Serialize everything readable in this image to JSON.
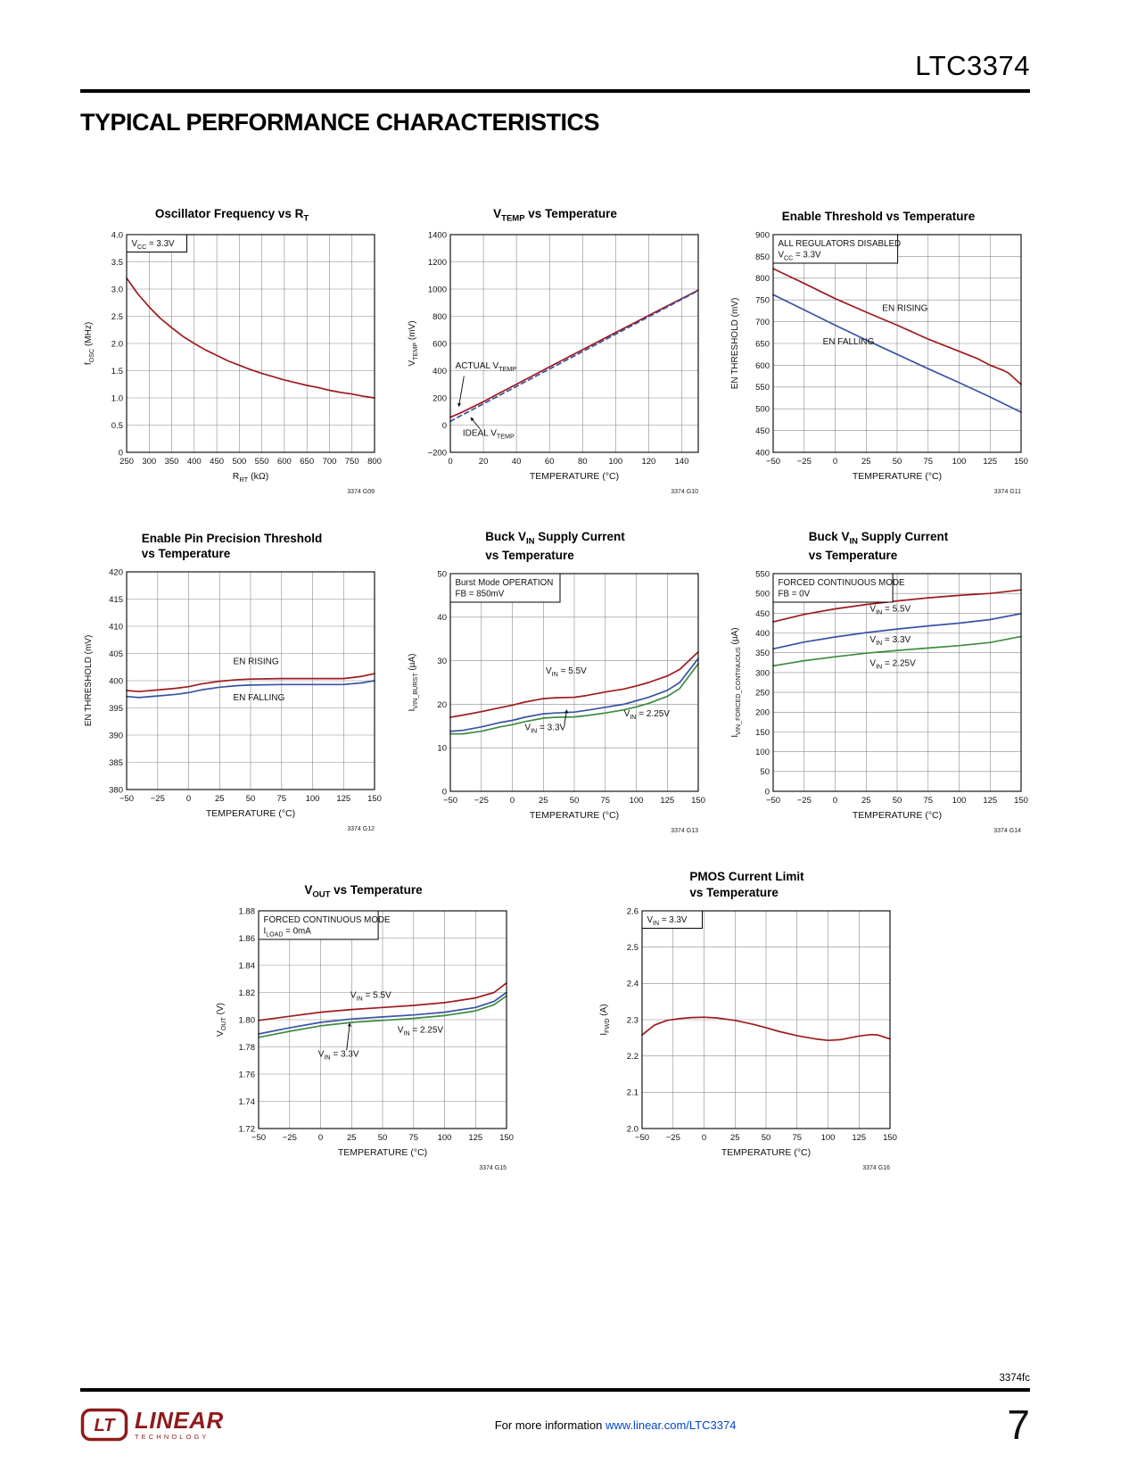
{
  "page": {
    "part_number": "LTC3374",
    "section_title": "TYPICAL PERFORMANCE CHARACTERISTICS",
    "footer": {
      "doc_code": "3374fc",
      "info_text": "For more information ",
      "info_link": "www.linear.com/LTC3374",
      "logo_mark": "LT",
      "logo_text": "LINEAR",
      "logo_sub": "TECHNOLOGY",
      "page_number": "7"
    }
  },
  "colors": {
    "red": "#9e1b1e",
    "blue": "#3953a4",
    "green": "#3d8c40",
    "link": "#0048cc",
    "logo": "#8e1b1d",
    "grid": "#8a8a8a",
    "ink": "#111111"
  },
  "chart_data": [
    {
      "id": "G09",
      "type": "line",
      "title": [
        "Oscillator Frequency vs R~T~"
      ],
      "xlabel": "R~RT~ (kΩ)",
      "ylabel": "f~OSC~ (MHz)",
      "ref": "3374 G09",
      "xlim": [
        250,
        800
      ],
      "xticks": [
        250,
        300,
        350,
        400,
        450,
        500,
        550,
        600,
        650,
        700,
        750,
        800
      ],
      "ylim": [
        0,
        4
      ],
      "yticks": [
        0,
        0.5,
        1,
        1.5,
        2,
        2.5,
        3,
        3.5,
        4
      ],
      "ytick_labels": [
        "0",
        "0.5",
        "1.0",
        "1.5",
        "2.0",
        "2.5",
        "3.0",
        "3.5",
        "4.0"
      ],
      "corner_box": [
        "V~CC~ = 3.3V"
      ],
      "annotations": [],
      "series": [
        {
          "name": "fOSC vs RT",
          "color": "red",
          "x": [
            250,
            275,
            300,
            325,
            350,
            375,
            400,
            425,
            450,
            475,
            500,
            525,
            550,
            575,
            600,
            625,
            650,
            675,
            700,
            725,
            750,
            775,
            800
          ],
          "y": [
            3.2,
            2.91,
            2.67,
            2.46,
            2.29,
            2.13,
            2.0,
            1.88,
            1.78,
            1.68,
            1.6,
            1.52,
            1.45,
            1.39,
            1.33,
            1.28,
            1.23,
            1.19,
            1.14,
            1.1,
            1.07,
            1.03,
            1.0
          ]
        }
      ]
    },
    {
      "id": "G10",
      "type": "line",
      "title": [
        "V~TEMP~ vs Temperature"
      ],
      "xlabel": "TEMPERATURE (°C)",
      "ylabel": "V~TEMP~ (mV)",
      "ref": "3374 G10",
      "xlim": [
        0,
        150
      ],
      "xticks": [
        0,
        20,
        40,
        60,
        80,
        100,
        120,
        140
      ],
      "ylim": [
        -200,
        1400
      ],
      "yticks": [
        -200,
        0,
        200,
        400,
        600,
        800,
        1000,
        1200,
        1400
      ],
      "ytick_labels": [
        "−200",
        "0",
        "200",
        "400",
        "600",
        "800",
        "1000",
        "1200",
        "1400"
      ],
      "annotations": [
        {
          "text": "ACTUAL V~TEMP~",
          "fx": 0.02,
          "fy": 0.615,
          "arrow": [
            0.055,
            0.65,
            0.034,
            0.79
          ]
        },
        {
          "text": "IDEAL V~TEMP~",
          "fx": 0.05,
          "fy": 0.925,
          "arrow": [
            0.12,
            0.893,
            0.082,
            0.84
          ]
        }
      ],
      "series": [
        {
          "name": "ACTUAL VTEMP",
          "color": "red",
          "x": [
            0,
            5,
            10,
            20,
            30,
            40,
            50,
            60,
            70,
            80,
            90,
            100,
            110,
            120,
            130,
            140,
            150
          ],
          "y": [
            58,
            83,
            112,
            172,
            237,
            300,
            364,
            428,
            491,
            554,
            617,
            680,
            743,
            806,
            868,
            930,
            992
          ]
        },
        {
          "name": "IDEAL VTEMP",
          "color": "blue",
          "dash": "5,4",
          "x": [
            0,
            150
          ],
          "y": [
            28,
            988
          ]
        }
      ]
    },
    {
      "id": "G11",
      "type": "line",
      "title": [
        "Enable Threshold vs Temperature"
      ],
      "xlabel": "TEMPERATURE (°C)",
      "ylabel": "EN THRESHOLD (mV)",
      "ref": "3374 G11",
      "xlim": [
        -50,
        150
      ],
      "xticks": [
        -50,
        -25,
        0,
        25,
        50,
        75,
        100,
        125,
        150
      ],
      "xtick_labels": [
        "−50",
        "−25",
        "0",
        "25",
        "50",
        "75",
        "100",
        "125",
        "150"
      ],
      "ylim": [
        400,
        900
      ],
      "yticks": [
        400,
        450,
        500,
        550,
        600,
        650,
        700,
        750,
        800,
        850,
        900
      ],
      "corner_box": [
        "ALL REGULATORS DISABLED",
        "V~CC~ = 3.3V"
      ],
      "annotations": [
        {
          "text": "EN RISING",
          "fx": 0.44,
          "fy": 0.35
        },
        {
          "text": "EN FALLING",
          "fx": 0.2,
          "fy": 0.505
        }
      ],
      "series": [
        {
          "name": "EN RISING",
          "color": "red",
          "x": [
            -50,
            -25,
            0,
            25,
            50,
            75,
            100,
            115,
            125,
            135,
            140,
            150
          ],
          "y": [
            822,
            788,
            753,
            722,
            692,
            660,
            632,
            615,
            600,
            589,
            582,
            556
          ]
        },
        {
          "name": "EN FALLING",
          "color": "blue",
          "x": [
            -50,
            -25,
            0,
            25,
            50,
            75,
            100,
            125,
            150
          ],
          "y": [
            762,
            727,
            692,
            658,
            625,
            592,
            560,
            527,
            492
          ]
        }
      ]
    },
    {
      "id": "G12",
      "type": "line",
      "title": [
        "Enable Pin Precision Threshold",
        "vs Temperature"
      ],
      "xlabel": "TEMPERATURE (°C)",
      "ylabel": "EN THRESHOLD (mV)",
      "ref": "3374 G12",
      "xlim": [
        -50,
        150
      ],
      "xticks": [
        -50,
        -25,
        0,
        25,
        50,
        75,
        100,
        125,
        150
      ],
      "xtick_labels": [
        "−50",
        "−25",
        "0",
        "25",
        "50",
        "75",
        "100",
        "125",
        "150"
      ],
      "ylim": [
        380,
        420
      ],
      "yticks": [
        380,
        385,
        390,
        395,
        400,
        405,
        410,
        415,
        420
      ],
      "annotations": [
        {
          "text": "EN RISING",
          "fx": 0.43,
          "fy": 0.425
        },
        {
          "text": "EN FALLING",
          "fx": 0.43,
          "fy": 0.59
        }
      ],
      "series": [
        {
          "name": "EN RISING",
          "color": "red",
          "x": [
            -50,
            -40,
            -25,
            -10,
            0,
            10,
            25,
            40,
            50,
            75,
            100,
            125,
            140,
            150
          ],
          "y": [
            398.2,
            398.0,
            398.3,
            398.6,
            398.9,
            399.4,
            399.9,
            400.2,
            400.3,
            400.4,
            400.4,
            400.4,
            400.8,
            401.3
          ]
        },
        {
          "name": "EN FALLING",
          "color": "blue",
          "x": [
            -50,
            -40,
            -25,
            -10,
            0,
            10,
            25,
            40,
            50,
            75,
            100,
            125,
            140,
            150
          ],
          "y": [
            397.1,
            396.9,
            397.2,
            397.5,
            397.8,
            398.3,
            398.8,
            399.1,
            399.2,
            399.3,
            399.3,
            399.3,
            399.6,
            400.0
          ]
        }
      ]
    },
    {
      "id": "G13",
      "type": "line",
      "title": [
        "Buck V~IN~ Supply Current",
        "vs Temperature"
      ],
      "xlabel": "TEMPERATURE (°C)",
      "ylabel": "I~VIN_BURST~ (µA)",
      "ref": "3374 G13",
      "xlim": [
        -50,
        150
      ],
      "xticks": [
        -50,
        -25,
        0,
        25,
        50,
        75,
        100,
        125,
        150
      ],
      "xtick_labels": [
        "−50",
        "−25",
        "0",
        "25",
        "50",
        "75",
        "100",
        "125",
        "150"
      ],
      "ylim": [
        0,
        50
      ],
      "yticks": [
        0,
        10,
        20,
        30,
        40,
        50
      ],
      "corner_box": [
        "Burst Mode OPERATION",
        "FB = 850mV"
      ],
      "annotations": [
        {
          "text": "V~IN~ = 5.5V",
          "fx": 0.385,
          "fy": 0.46
        },
        {
          "text": "V~IN~ = 3.3V",
          "fx": 0.3,
          "fy": 0.72,
          "arrow": [
            0.46,
            0.69,
            0.47,
            0.625
          ]
        },
        {
          "text": "V~IN~ = 2.25V",
          "fx": 0.7,
          "fy": 0.655
        }
      ],
      "series": [
        {
          "name": "VIN = 5.5V",
          "color": "red",
          "x": [
            -50,
            -40,
            -25,
            -10,
            0,
            10,
            25,
            35,
            50,
            60,
            75,
            90,
            100,
            110,
            125,
            135,
            150
          ],
          "y": [
            17,
            17.5,
            18.3,
            19.2,
            19.8,
            20.5,
            21.3,
            21.5,
            21.6,
            22,
            22.8,
            23.5,
            24.2,
            25,
            26.5,
            28,
            32
          ]
        },
        {
          "name": "VIN = 3.3V",
          "color": "blue",
          "x": [
            -50,
            -40,
            -25,
            -10,
            0,
            10,
            25,
            35,
            50,
            60,
            75,
            90,
            100,
            110,
            125,
            135,
            150
          ],
          "y": [
            13.8,
            14,
            14.8,
            15.8,
            16.3,
            17,
            17.8,
            18,
            18.2,
            18.6,
            19.3,
            20,
            20.8,
            21.6,
            23.2,
            25,
            30.5
          ]
        },
        {
          "name": "VIN = 2.25V",
          "color": "green",
          "x": [
            -50,
            -40,
            -25,
            -10,
            0,
            10,
            25,
            35,
            50,
            60,
            75,
            90,
            100,
            110,
            125,
            135,
            150
          ],
          "y": [
            13.2,
            13.2,
            13.8,
            14.8,
            15.3,
            16,
            16.8,
            17,
            17.1,
            17.4,
            18,
            18.7,
            19.4,
            20.2,
            21.8,
            23.6,
            29.3
          ]
        }
      ]
    },
    {
      "id": "G14",
      "type": "line",
      "title": [
        "Buck V~IN~ Supply Current",
        "vs Temperature"
      ],
      "xlabel": "TEMPERATURE (°C)",
      "ylabel": "I~VIN_FORCED_CONTINUOUS~ (µA)",
      "ref": "3374 G14",
      "xlim": [
        -50,
        150
      ],
      "xticks": [
        -50,
        -25,
        0,
        25,
        50,
        75,
        100,
        125,
        150
      ],
      "xtick_labels": [
        "−50",
        "−25",
        "0",
        "25",
        "50",
        "75",
        "100",
        "125",
        "150"
      ],
      "ylim": [
        0,
        550
      ],
      "yticks": [
        0,
        50,
        100,
        150,
        200,
        250,
        300,
        350,
        400,
        450,
        500,
        550
      ],
      "corner_box": [
        "FORCED CONTINUOUS MODE",
        "FB = 0V"
      ],
      "annotations": [
        {
          "text": "V~IN~ = 5.5V",
          "fx": 0.39,
          "fy": 0.175
        },
        {
          "text": "V~IN~ = 3.3V",
          "fx": 0.39,
          "fy": 0.315
        },
        {
          "text": "V~IN~ = 2.25V",
          "fx": 0.39,
          "fy": 0.425
        }
      ],
      "series": [
        {
          "name": "VIN = 5.5V",
          "color": "red",
          "x": [
            -50,
            -25,
            0,
            25,
            50,
            75,
            100,
            125,
            150
          ],
          "y": [
            428,
            447,
            461,
            472,
            481,
            489,
            495,
            500,
            509
          ]
        },
        {
          "name": "VIN = 3.3V",
          "color": "blue",
          "x": [
            -50,
            -25,
            0,
            25,
            50,
            75,
            100,
            125,
            150
          ],
          "y": [
            360,
            377,
            390,
            401,
            410,
            418,
            425,
            434,
            449
          ]
        },
        {
          "name": "VIN = 2.25V",
          "color": "green",
          "x": [
            -50,
            -25,
            0,
            25,
            50,
            75,
            100,
            125,
            150
          ],
          "y": [
            317,
            330,
            340,
            349,
            356,
            362,
            368,
            376,
            391
          ]
        }
      ]
    },
    {
      "id": "G15",
      "type": "line",
      "title": [
        "V~OUT~ vs Temperature"
      ],
      "xlabel": "TEMPERATURE (°C)",
      "ylabel": "V~OUT~ (V)",
      "ref": "3374 G15",
      "xlim": [
        -50,
        150
      ],
      "xticks": [
        -50,
        -25,
        0,
        25,
        50,
        75,
        100,
        125,
        150
      ],
      "xtick_labels": [
        "−50",
        "−25",
        "0",
        "25",
        "50",
        "75",
        "100",
        "125",
        "150"
      ],
      "ylim": [
        1.72,
        1.88
      ],
      "yticks": [
        1.72,
        1.74,
        1.76,
        1.78,
        1.8,
        1.82,
        1.84,
        1.86,
        1.88
      ],
      "ytick_labels": [
        "1.72",
        "1.74",
        "1.76",
        "1.78",
        "1.80",
        "1.82",
        "1.84",
        "1.86",
        "1.88"
      ],
      "corner_box": [
        "FORCED CONTINUOUS MODE",
        "I~LOAD~ = 0mA"
      ],
      "annotations": [
        {
          "text": "V~IN~ = 5.5V",
          "fx": 0.37,
          "fy": 0.4
        },
        {
          "text": "V~IN~ = 2.25V",
          "fx": 0.56,
          "fy": 0.56
        },
        {
          "text": "V~IN~ = 3.3V",
          "fx": 0.24,
          "fy": 0.67,
          "arrow": [
            0.355,
            0.64,
            0.368,
            0.515
          ]
        }
      ],
      "series": [
        {
          "name": "VIN = 5.5V",
          "color": "red",
          "x": [
            -50,
            -25,
            0,
            25,
            50,
            75,
            100,
            125,
            140,
            150
          ],
          "y": [
            1.7995,
            1.8025,
            1.8055,
            1.8075,
            1.809,
            1.8105,
            1.8125,
            1.816,
            1.82,
            1.827
          ]
        },
        {
          "name": "VIN = 3.3V",
          "color": "blue",
          "x": [
            -50,
            -25,
            0,
            25,
            50,
            75,
            100,
            125,
            140,
            150
          ],
          "y": [
            1.7895,
            1.794,
            1.798,
            1.8005,
            1.802,
            1.8035,
            1.8055,
            1.809,
            1.8135,
            1.82
          ]
        },
        {
          "name": "VIN = 2.25V",
          "color": "green",
          "x": [
            -50,
            -25,
            0,
            25,
            50,
            75,
            100,
            125,
            140,
            150
          ],
          "y": [
            1.787,
            1.7915,
            1.7955,
            1.798,
            1.7995,
            1.801,
            1.803,
            1.8065,
            1.811,
            1.8175
          ]
        }
      ]
    },
    {
      "id": "G16",
      "type": "line",
      "title": [
        "PMOS Current Limit",
        "vs Temperature"
      ],
      "xlabel": "TEMPERATURE (°C)",
      "ylabel": "I~FWD~ (A)",
      "ref": "3374 G16",
      "xlim": [
        -50,
        150
      ],
      "xticks": [
        -50,
        -25,
        0,
        25,
        50,
        75,
        100,
        125,
        150
      ],
      "xtick_labels": [
        "−50",
        "−25",
        "0",
        "25",
        "50",
        "75",
        "100",
        "125",
        "150"
      ],
      "ylim": [
        2.0,
        2.6
      ],
      "yticks": [
        2.0,
        2.1,
        2.2,
        2.3,
        2.4,
        2.5,
        2.6
      ],
      "ytick_labels": [
        "2.0",
        "2.1",
        "2.2",
        "2.3",
        "2.4",
        "2.5",
        "2.6"
      ],
      "corner_box": [
        "V~IN~ = 3.3V"
      ],
      "annotations": [],
      "series": [
        {
          "name": "IFWD",
          "color": "red",
          "x": [
            -50,
            -40,
            -30,
            -20,
            -10,
            0,
            10,
            25,
            40,
            50,
            60,
            75,
            90,
            100,
            110,
            125,
            135,
            140,
            150
          ],
          "y": [
            2.258,
            2.285,
            2.298,
            2.303,
            2.306,
            2.307,
            2.305,
            2.298,
            2.287,
            2.278,
            2.268,
            2.256,
            2.247,
            2.243,
            2.245,
            2.255,
            2.259,
            2.258,
            2.247
          ]
        }
      ]
    }
  ]
}
